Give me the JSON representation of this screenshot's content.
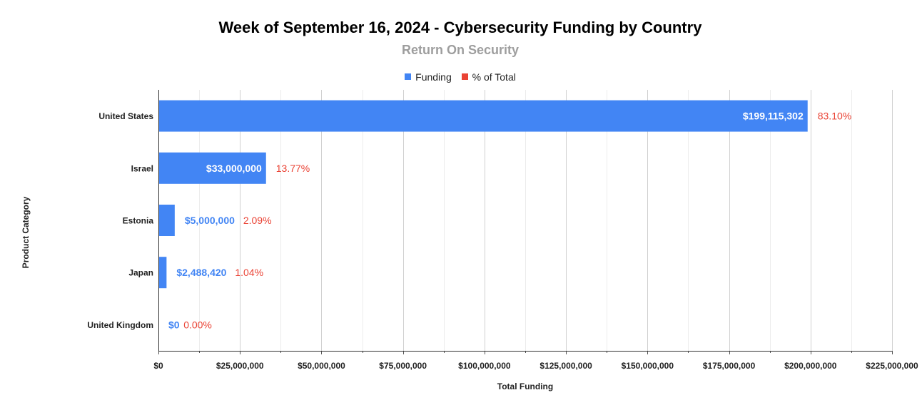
{
  "chart_data": {
    "type": "bar",
    "orientation": "horizontal",
    "title": "Week of September 16, 2024 - Cybersecurity Funding by Country",
    "subtitle": "Return On Security",
    "xlabel": "Total Funding",
    "ylabel": "Product Category",
    "categories": [
      "United States",
      "Israel",
      "Estonia",
      "Japan",
      "United Kingdom"
    ],
    "series": [
      {
        "name": "Funding",
        "color": "#4285f4",
        "values": [
          199115302,
          33000000,
          5000000,
          2488420,
          0
        ],
        "labels": [
          "$199,115,302",
          "$33,000,000",
          "$5,000,000",
          "$2,488,420",
          "$0"
        ]
      },
      {
        "name": "% of Total",
        "color": "#ea4335",
        "values": [
          83.1,
          13.77,
          2.09,
          1.04,
          0.0
        ],
        "labels": [
          "83.10%",
          "13.77%",
          "2.09%",
          "1.04%",
          "0.00%"
        ]
      }
    ],
    "xlim": [
      0,
      225000000
    ],
    "xticks": [
      0,
      25000000,
      50000000,
      75000000,
      100000000,
      125000000,
      150000000,
      175000000,
      200000000,
      225000000
    ],
    "xtick_labels": [
      "$0",
      "$25,000,000",
      "$50,000,000",
      "$75,000,000",
      "$100,000,000",
      "$125,000,000",
      "$150,000,000",
      "$175,000,000",
      "$200,000,000",
      "$225,000,000"
    ],
    "grid": true,
    "legend_position": "top"
  }
}
